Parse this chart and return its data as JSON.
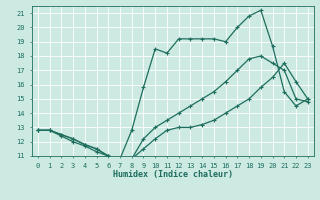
{
  "xlabel": "Humidex (Indice chaleur)",
  "xlim": [
    -0.5,
    23.5
  ],
  "ylim": [
    11,
    21.5
  ],
  "yticks": [
    11,
    12,
    13,
    14,
    15,
    16,
    17,
    18,
    19,
    20,
    21
  ],
  "xticks": [
    0,
    1,
    2,
    3,
    4,
    5,
    6,
    7,
    8,
    9,
    10,
    11,
    12,
    13,
    14,
    15,
    16,
    17,
    18,
    19,
    20,
    21,
    22,
    23
  ],
  "bg_color": "#cce9e2",
  "line_color": "#1e6e5e",
  "grid_color": "#b8d8d0",
  "line1_x": [
    0,
    1,
    2,
    3,
    4,
    5,
    6,
    7,
    8,
    9,
    10,
    11,
    12,
    13,
    14,
    15,
    16,
    17,
    18,
    19,
    20,
    21,
    22,
    23
  ],
  "line1_y": [
    12.8,
    12.8,
    12.5,
    12.2,
    11.8,
    11.5,
    11.0,
    10.8,
    10.8,
    11.5,
    12.2,
    12.8,
    13.0,
    13.0,
    13.2,
    13.5,
    14.0,
    14.5,
    15.0,
    15.8,
    16.5,
    17.5,
    16.2,
    15.0
  ],
  "line2_x": [
    0,
    1,
    2,
    3,
    4,
    5,
    6,
    7,
    8,
    9,
    10,
    11,
    12,
    13,
    14,
    15,
    16,
    17,
    18,
    19,
    20,
    21,
    22,
    23
  ],
  "line2_y": [
    12.8,
    12.8,
    12.4,
    12.0,
    11.7,
    11.3,
    11.0,
    10.8,
    12.8,
    15.8,
    18.5,
    18.2,
    19.2,
    19.2,
    19.2,
    19.2,
    19.0,
    20.0,
    20.8,
    21.2,
    18.7,
    15.5,
    14.5,
    15.0
  ],
  "line3_x": [
    0,
    1,
    2,
    3,
    4,
    5,
    6,
    7,
    8,
    9,
    10,
    11,
    12,
    13,
    14,
    15,
    16,
    17,
    18,
    19,
    20,
    21,
    22,
    23
  ],
  "line3_y": [
    12.8,
    12.8,
    12.5,
    12.2,
    11.8,
    11.5,
    11.0,
    10.8,
    10.8,
    12.2,
    13.0,
    13.5,
    14.0,
    14.5,
    15.0,
    15.5,
    16.2,
    17.0,
    17.8,
    18.0,
    17.5,
    17.0,
    15.0,
    14.8
  ]
}
